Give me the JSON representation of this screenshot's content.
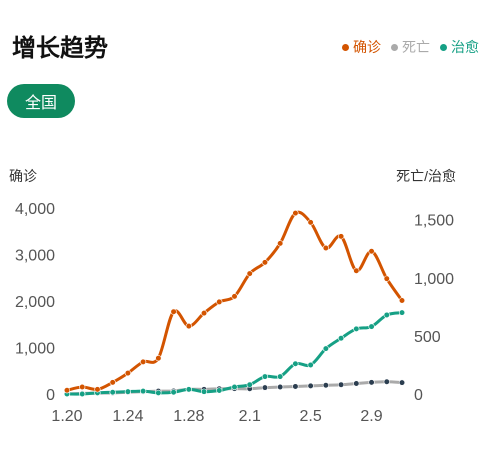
{
  "header": {
    "title": "增长趋势"
  },
  "legend": [
    {
      "label": "确诊",
      "color": "#d35400"
    },
    {
      "label": "死亡",
      "color": "#aaaaaa"
    },
    {
      "label": "治愈",
      "color": "#16a085"
    }
  ],
  "region_button": {
    "label": "全国"
  },
  "chart_data": {
    "type": "line",
    "ylabel_left": "确诊",
    "ylabel_right": "死亡/治愈",
    "x_tick_labels": [
      "1.20",
      "1.24",
      "1.28",
      "2.1",
      "2.5",
      "2.9"
    ],
    "y_left_ticks": [
      "0",
      "1,000",
      "2,000",
      "3,000",
      "4,000"
    ],
    "y_right_ticks": [
      "0",
      "500",
      "1,000",
      "1,500"
    ],
    "ylim_left": [
      0,
      4000
    ],
    "ylim_right": [
      0,
      1600
    ],
    "x": [
      "1.20",
      "1.21",
      "1.22",
      "1.23",
      "1.24",
      "1.25",
      "1.26",
      "1.27",
      "1.28",
      "1.29",
      "1.30",
      "1.31",
      "2.1",
      "2.2",
      "2.3",
      "2.4",
      "2.5",
      "2.6",
      "2.7",
      "2.8",
      "2.9",
      "2.10",
      "2.11"
    ],
    "series": [
      {
        "name": "确诊",
        "axis": "left",
        "color": "#d35400",
        "values": [
          80,
          150,
          100,
          250,
          450,
          690,
          770,
          1770,
          1460,
          1740,
          1980,
          2100,
          2590,
          2830,
          3240,
          3890,
          3690,
          3140,
          3390,
          2650,
          3070,
          2480,
          2010
        ]
      },
      {
        "name": "死亡",
        "axis": "right",
        "color": "#aaaaaa",
        "values": [
          0,
          5,
          8,
          10,
          15,
          20,
          25,
          26,
          40,
          40,
          45,
          46,
          45,
          55,
          60,
          65,
          70,
          75,
          80,
          90,
          100,
          105,
          98
        ]
      },
      {
        "name": "治愈",
        "axis": "right",
        "color": "#16a085",
        "values": [
          0,
          0,
          10,
          15,
          20,
          25,
          10,
          15,
          40,
          20,
          30,
          60,
          80,
          150,
          150,
          260,
          250,
          390,
          480,
          560,
          580,
          680,
          700
        ]
      }
    ],
    "point_color": "#2c3e50",
    "grid": false,
    "legend_position": "top-right"
  }
}
